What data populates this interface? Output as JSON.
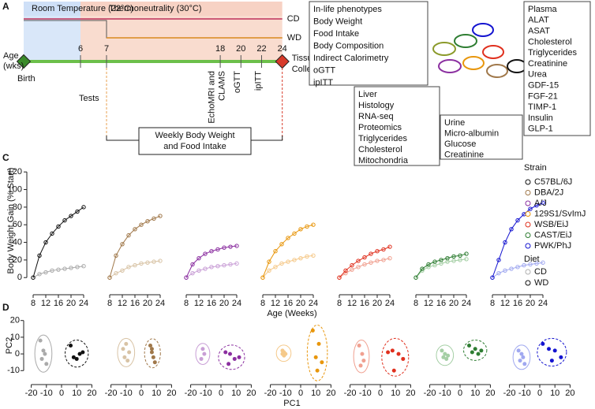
{
  "panel_labels": {
    "a": "A",
    "c": "C",
    "d": "D"
  },
  "timeline": {
    "legend": [
      "Room Temperature (22°C)",
      "Thermoneutrality (30°C)"
    ],
    "diets": [
      "CD",
      "WD"
    ],
    "age_label": [
      "Age",
      "(wks)"
    ],
    "ticks": [
      6,
      7,
      18,
      20,
      22,
      24
    ],
    "birth": "Birth",
    "end": [
      "Tissue",
      "Collection"
    ],
    "tests_label": "Tests",
    "tests": [
      [
        "EchoMRI and",
        "CLAMS"
      ],
      [
        "oGTT"
      ],
      [
        "ipITT"
      ]
    ],
    "weekly": [
      "Weekly Body Weight",
      "and Food Intake"
    ]
  },
  "boxes": [
    {
      "title": "In-life phenotypes",
      "items": [
        "Body Weight",
        "Food Intake",
        "Body Composition",
        "Indirect Calorimetry",
        "oGTT",
        "ipITT"
      ]
    },
    {
      "title": "Liver",
      "items": [
        "Histology",
        "RNA-seq",
        "Proteomics",
        "Triglycerides",
        "Cholesterol",
        "Mitochondria"
      ]
    },
    {
      "title": "Urine",
      "items": [
        "Micro-albumin",
        "Glucose",
        "Creatinine"
      ]
    },
    {
      "title": "Plasma",
      "items": [
        "ALAT",
        "ASAT",
        "Cholesterol",
        "Triglycerides",
        "Creatinine",
        "Urea",
        "GDF-15",
        "FGF-21",
        "TIMP-1",
        "Insulin",
        "GLP-1"
      ]
    }
  ],
  "chart_data": [
    {
      "type": "line",
      "y_label": "Body Weight Gain (% Start)",
      "x_label": "Age (Weeks)",
      "x": [
        8,
        10,
        12,
        14,
        16,
        18,
        20,
        22,
        24
      ],
      "xlim": [
        6.5,
        25
      ],
      "xticks": [
        8,
        12,
        16,
        20,
        24
      ],
      "ylim": [
        -15,
        130
      ],
      "yticks": [
        0,
        20,
        40,
        60,
        80,
        100,
        120
      ],
      "strain_title": "Strain",
      "diet_title": "Diet",
      "diet_legend": [
        {
          "name": "CD",
          "color": "#b0b0b0"
        },
        {
          "name": "WD",
          "color": "#111111"
        }
      ],
      "panels": [
        {
          "name": "C57BL/6J",
          "color": "#111111",
          "series": [
            {
              "color": "#aaaaaa",
              "values": [
                0,
                4,
                6,
                8,
                9,
                10,
                11,
                12,
                13
              ]
            },
            {
              "color": "#111111",
              "values": [
                0,
                25,
                40,
                50,
                58,
                65,
                70,
                75,
                80
              ]
            }
          ]
        },
        {
          "name": "DBA/2J",
          "color": "#a0784a",
          "series": [
            {
              "color": "#d8c3a5",
              "values": [
                0,
                5,
                8,
                12,
                14,
                16,
                17,
                18,
                19
              ]
            },
            {
              "color": "#a0784a",
              "values": [
                0,
                25,
                38,
                48,
                55,
                60,
                64,
                67,
                70
              ]
            }
          ]
        },
        {
          "name": "A/J",
          "color": "#8b2fa0",
          "series": [
            {
              "color": "#c99fd6",
              "values": [
                0,
                5,
                8,
                10,
                12,
                13,
                14,
                15,
                16
              ]
            },
            {
              "color": "#8b2fa0",
              "values": [
                0,
                15,
                22,
                27,
                30,
                32,
                34,
                35,
                36
              ]
            }
          ]
        },
        {
          "name": "129S1/SvImJ",
          "color": "#e8960c",
          "series": [
            {
              "color": "#f5c98a",
              "values": [
                0,
                8,
                12,
                16,
                18,
                20,
                22,
                24,
                25
              ]
            },
            {
              "color": "#e8960c",
              "values": [
                0,
                18,
                30,
                38,
                45,
                50,
                55,
                58,
                60
              ]
            }
          ]
        },
        {
          "name": "WSB/EiJ",
          "color": "#e0301e",
          "series": [
            {
              "color": "#f0a090",
              "values": [
                0,
                5,
                9,
                12,
                15,
                17,
                19,
                20,
                22
              ]
            },
            {
              "color": "#e0301e",
              "values": [
                0,
                8,
                14,
                19,
                23,
                27,
                30,
                32,
                35
              ]
            }
          ]
        },
        {
          "name": "CAST/EiJ",
          "color": "#2e7d32",
          "series": [
            {
              "color": "#a5cfa5",
              "values": [
                0,
                8,
                12,
                14,
                16,
                18,
                19,
                20,
                21
              ]
            },
            {
              "color": "#2e7d32",
              "values": [
                0,
                10,
                15,
                18,
                20,
                22,
                24,
                25,
                27
              ]
            }
          ]
        },
        {
          "name": "PWK/PhJ",
          "color": "#1414d0",
          "series": [
            {
              "color": "#a0a8f0",
              "values": [
                0,
                5,
                8,
                10,
                12,
                14,
                15,
                16,
                17
              ]
            },
            {
              "color": "#1414d0",
              "values": [
                0,
                20,
                40,
                55,
                65,
                72,
                78,
                82,
                85
              ]
            }
          ]
        }
      ]
    },
    {
      "type": "scatter",
      "x_label": "PC1",
      "y_label": "PC2",
      "xlim": [
        -25,
        25
      ],
      "xticks": [
        -20,
        -10,
        0,
        10,
        20
      ],
      "ylim": [
        -16,
        26
      ],
      "yticks": [
        -10,
        0,
        10,
        20
      ],
      "panels": [
        {
          "groups": [
            {
              "color": "#aaaaaa",
              "x": [
                -14,
                -12,
                -13,
                -11,
                -10
              ],
              "y": [
                8,
                2,
                -3,
                0,
                -6
              ]
            },
            {
              "color": "#111111",
              "x": [
                6,
                8,
                12,
                14,
                10
              ],
              "y": [
                5,
                -2,
                0,
                1,
                -3
              ]
            }
          ]
        },
        {
          "groups": [
            {
              "color": "#d8c3a5",
              "x": [
                -10,
                -8,
                -12,
                -9,
                -11
              ],
              "y": [
                6,
                1,
                3,
                -4,
                -2
              ]
            },
            {
              "color": "#a0784a",
              "x": [
                6,
                7,
                8,
                9,
                7
              ],
              "y": [
                5,
                1,
                -2,
                -5,
                3
              ]
            }
          ]
        },
        {
          "groups": [
            {
              "color": "#c99fd6",
              "x": [
                -12,
                -11,
                -13
              ],
              "y": [
                3,
                0,
                -3
              ]
            },
            {
              "color": "#8b2fa0",
              "x": [
                3,
                6,
                9,
                12,
                5
              ],
              "y": [
                1,
                0,
                -3,
                -2,
                -6
              ]
            }
          ]
        },
        {
          "groups": [
            {
              "color": "#f5c98a",
              "x": [
                -12,
                -11,
                -10,
                -11,
                -12
              ],
              "y": [
                2,
                1,
                0,
                -1,
                0
              ]
            },
            {
              "color": "#e8960c",
              "x": [
                8,
                12,
                10,
                14,
                11
              ],
              "y": [
                14,
                6,
                -2,
                -5,
                -10
              ]
            }
          ]
        },
        {
          "groups": [
            {
              "color": "#f0a090",
              "x": [
                -14,
                -12,
                -11,
                -13
              ],
              "y": [
                5,
                0,
                -4,
                -7
              ]
            },
            {
              "color": "#e0301e",
              "x": [
                5,
                8,
                12,
                15,
                9
              ],
              "y": [
                1,
                2,
                0,
                -3,
                -10
              ]
            }
          ]
        },
        {
          "groups": [
            {
              "color": "#a5cfa5",
              "x": [
                -12,
                -10,
                -8,
                -11,
                -9
              ],
              "y": [
                2,
                0,
                -1,
                -2,
                -3
              ]
            },
            {
              "color": "#2e7d32",
              "x": [
                6,
                10,
                14,
                12,
                8
              ],
              "y": [
                5,
                3,
                2,
                0,
                1
              ]
            }
          ]
        },
        {
          "groups": [
            {
              "color": "#a0a8f0",
              "x": [
                -14,
                -12,
                -11,
                -13,
                -10
              ],
              "y": [
                2,
                0,
                -2,
                -4,
                -6
              ]
            },
            {
              "color": "#1414d0",
              "x": [
                2,
                6,
                10,
                14,
                8
              ],
              "y": [
                6,
                3,
                2,
                -2,
                -4
              ]
            }
          ]
        }
      ]
    }
  ]
}
